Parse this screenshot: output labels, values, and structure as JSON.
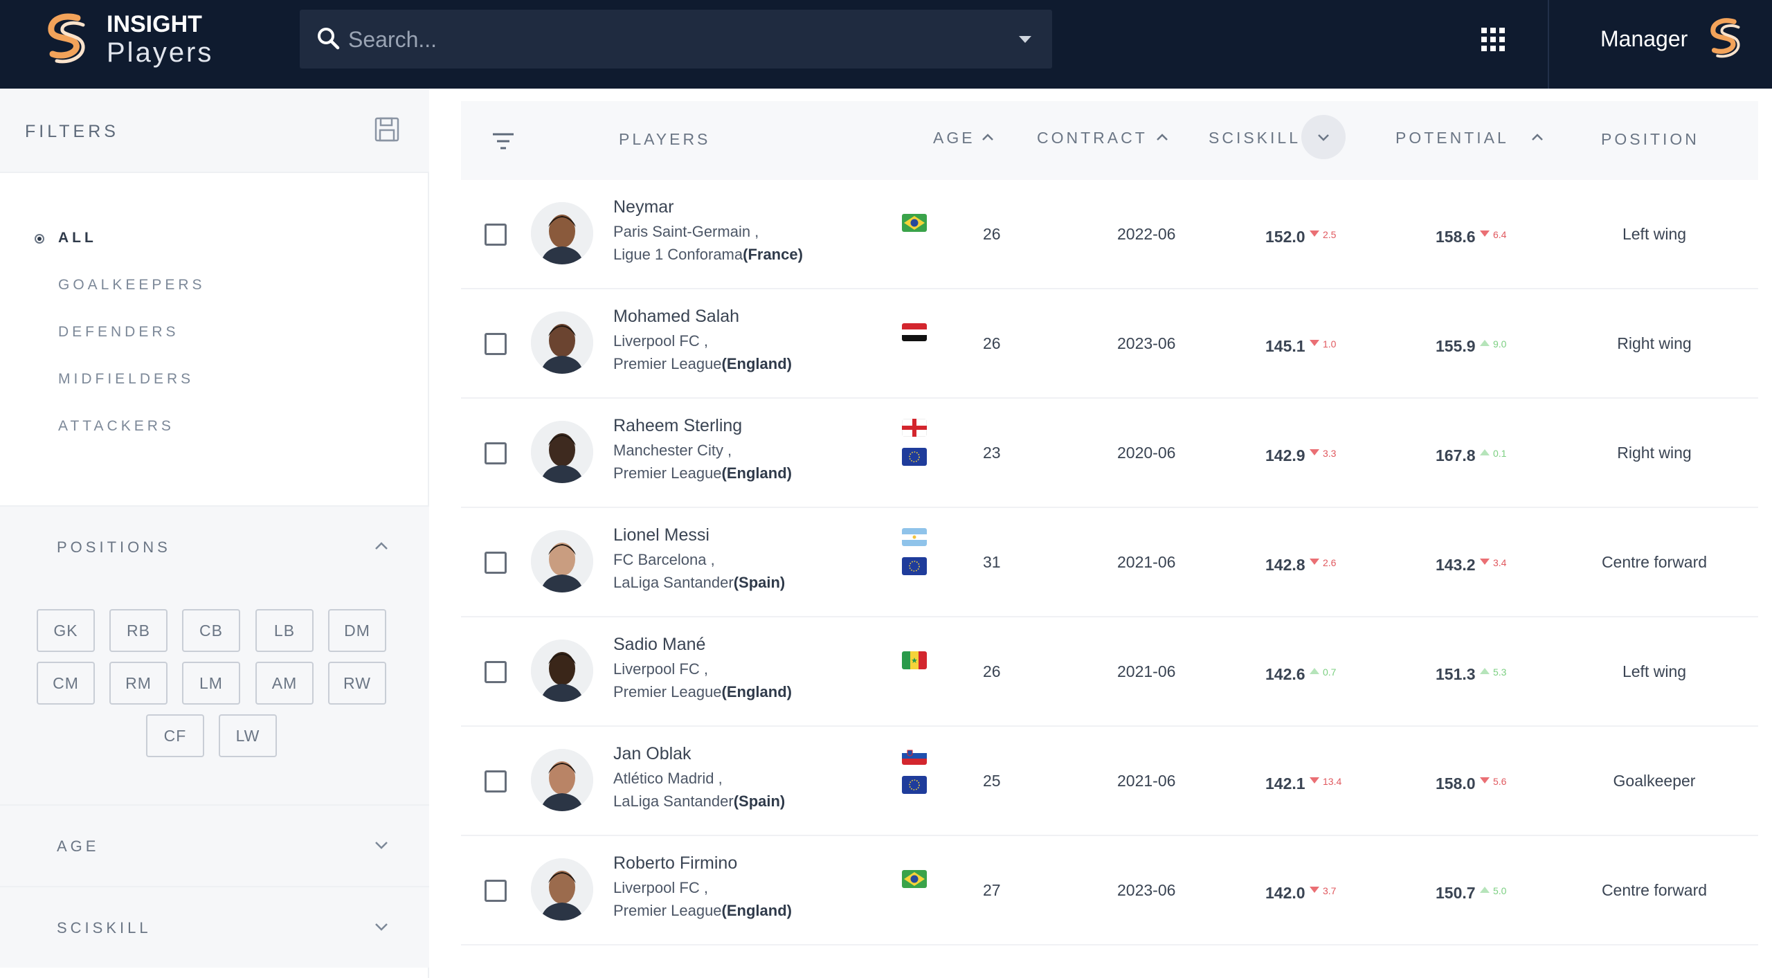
{
  "header": {
    "brand_top": "INSIGHT",
    "brand_bottom": "Players",
    "search_placeholder": "Search...",
    "user_label": "Manager",
    "accent": "#f3a35a"
  },
  "sidebar": {
    "title": "FILTERS",
    "categories": [
      {
        "label": "ALL",
        "selected": true
      },
      {
        "label": "GOALKEEPERS",
        "selected": false
      },
      {
        "label": "DEFENDERS",
        "selected": false
      },
      {
        "label": "MIDFIELDERS",
        "selected": false
      },
      {
        "label": "ATTACKERS",
        "selected": false
      }
    ],
    "positions_title": "POSITIONS",
    "positions": [
      "GK",
      "RB",
      "CB",
      "LB",
      "DM",
      "CM",
      "RM",
      "LM",
      "AM",
      "RW",
      "CF",
      "LW"
    ],
    "age_title": "AGE",
    "sciskill_title": "SCISKILL"
  },
  "table": {
    "columns": {
      "players": "PLAYERS",
      "age": "AGE",
      "contract": "CONTRACT",
      "sciskill": "SCISKILL",
      "potential": "POTENTIAL",
      "position": "POSITION"
    },
    "rows": [
      {
        "name": "Neymar",
        "club": "Paris Saint-Germain ,",
        "league": "Ligue 1 Conforama",
        "country": "(France)",
        "flags": [
          "brazil"
        ],
        "age": "26",
        "contract": "2022-06",
        "sciskill": "152.0",
        "sciskill_delta": "2.5",
        "sciskill_dir": "down",
        "potential": "158.6",
        "potential_delta": "6.4",
        "potential_dir": "down",
        "position": "Left wing"
      },
      {
        "name": "Mohamed Salah",
        "club": "Liverpool FC ,",
        "league": "Premier League",
        "country": "(England)",
        "flags": [
          "egypt"
        ],
        "age": "26",
        "contract": "2023-06",
        "sciskill": "145.1",
        "sciskill_delta": "1.0",
        "sciskill_dir": "down",
        "potential": "155.9",
        "potential_delta": "9.0",
        "potential_dir": "up",
        "position": "Right wing"
      },
      {
        "name": "Raheem Sterling",
        "club": "Manchester City ,",
        "league": "Premier League",
        "country": "(England)",
        "flags": [
          "england",
          "eu"
        ],
        "age": "23",
        "contract": "2020-06",
        "sciskill": "142.9",
        "sciskill_delta": "3.3",
        "sciskill_dir": "down",
        "potential": "167.8",
        "potential_delta": "0.1",
        "potential_dir": "up",
        "position": "Right wing"
      },
      {
        "name": "Lionel Messi",
        "club": "FC Barcelona ,",
        "league": "LaLiga Santander",
        "country": "(Spain)",
        "flags": [
          "argentina",
          "eu"
        ],
        "age": "31",
        "contract": "2021-06",
        "sciskill": "142.8",
        "sciskill_delta": "2.6",
        "sciskill_dir": "down",
        "potential": "143.2",
        "potential_delta": "3.4",
        "potential_dir": "down",
        "position": "Centre forward"
      },
      {
        "name": "Sadio Mané",
        "club": "Liverpool FC ,",
        "league": "Premier League",
        "country": "(England)",
        "flags": [
          "senegal"
        ],
        "age": "26",
        "contract": "2021-06",
        "sciskill": "142.6",
        "sciskill_delta": "0.7",
        "sciskill_dir": "up",
        "potential": "151.3",
        "potential_delta": "5.3",
        "potential_dir": "up",
        "position": "Left wing"
      },
      {
        "name": "Jan Oblak",
        "club": "Atlético Madrid ,",
        "league": "LaLiga Santander",
        "country": "(Spain)",
        "flags": [
          "slovenia",
          "eu"
        ],
        "age": "25",
        "contract": "2021-06",
        "sciskill": "142.1",
        "sciskill_delta": "13.4",
        "sciskill_dir": "down",
        "potential": "158.0",
        "potential_delta": "5.6",
        "potential_dir": "down",
        "position": "Goalkeeper"
      },
      {
        "name": "Roberto Firmino",
        "club": "Liverpool FC ,",
        "league": "Premier League",
        "country": "(England)",
        "flags": [
          "brazil"
        ],
        "age": "27",
        "contract": "2023-06",
        "sciskill": "142.0",
        "sciskill_delta": "3.7",
        "sciskill_dir": "down",
        "potential": "150.7",
        "potential_delta": "5.0",
        "potential_dir": "up",
        "position": "Centre forward"
      }
    ]
  }
}
